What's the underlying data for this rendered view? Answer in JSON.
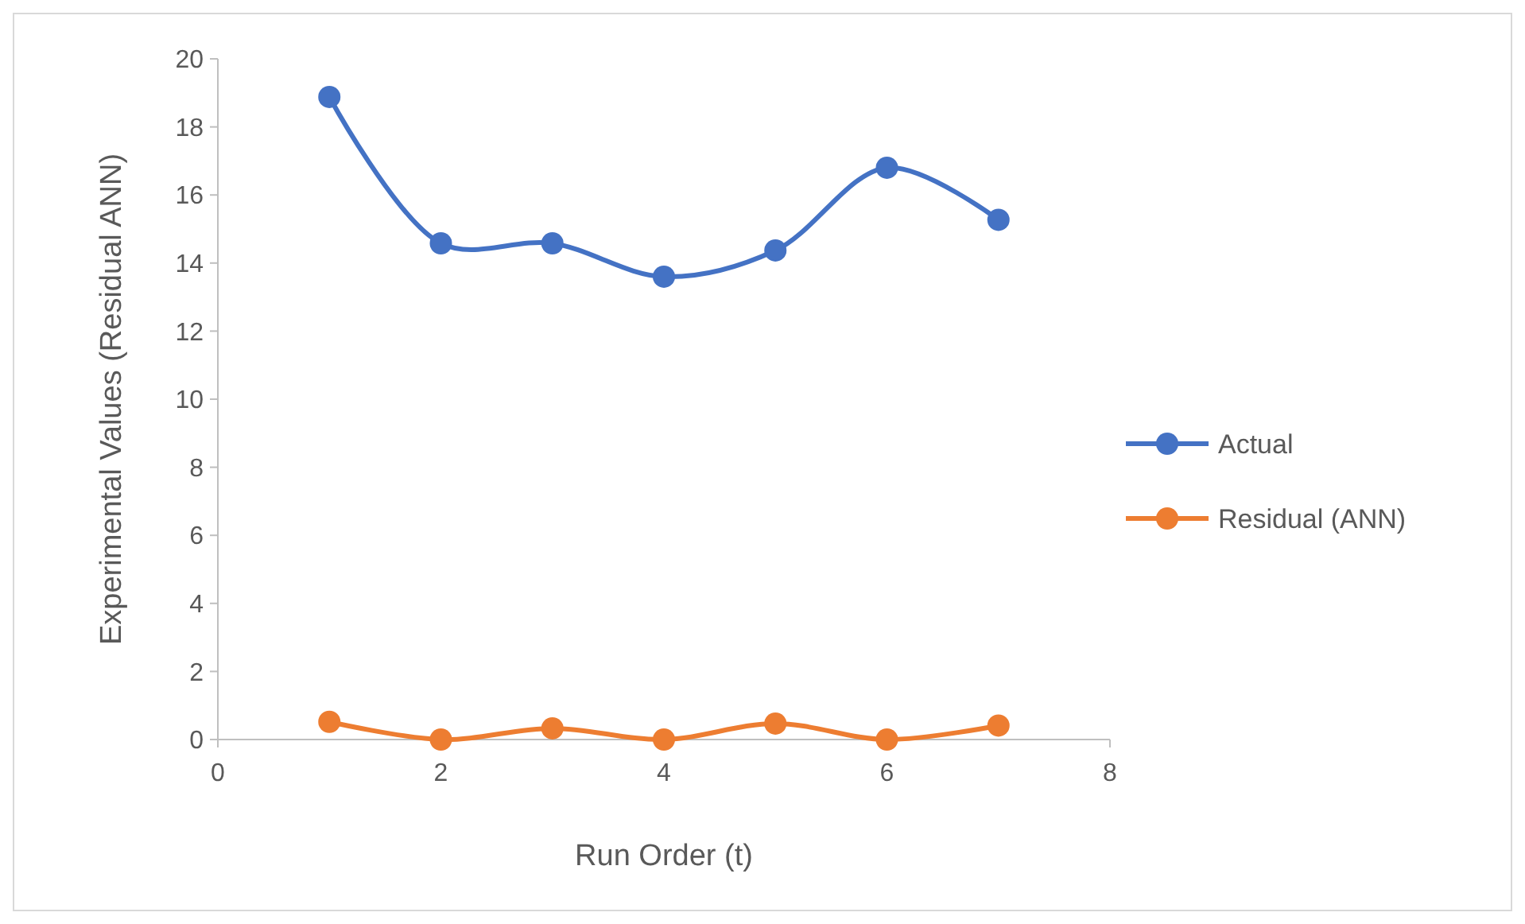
{
  "chart_data": {
    "type": "line",
    "xlabel": "Run Order (t)",
    "ylabel": "Experimental Values (Residual ANN)",
    "x": [
      1,
      2,
      3,
      4,
      5,
      6,
      7
    ],
    "series": [
      {
        "name": "Actual",
        "color": "#4472c4",
        "values": [
          18.88,
          14.58,
          14.58,
          13.6,
          14.37,
          16.8,
          15.27
        ]
      },
      {
        "name": "Residual (ANN)",
        "color": "#ed7d31",
        "values": [
          0.52,
          0,
          0.33,
          0,
          0.47,
          0,
          0.41
        ]
      }
    ],
    "xlim": [
      0,
      8
    ],
    "xticks": [
      0,
      2,
      4,
      6,
      8
    ],
    "ylim": [
      0,
      20
    ],
    "yticks": [
      0,
      2,
      4,
      6,
      8,
      10,
      12,
      14,
      16,
      18,
      20
    ],
    "grid": false,
    "legend": "right",
    "marker": "circle",
    "line_style": "solid"
  }
}
